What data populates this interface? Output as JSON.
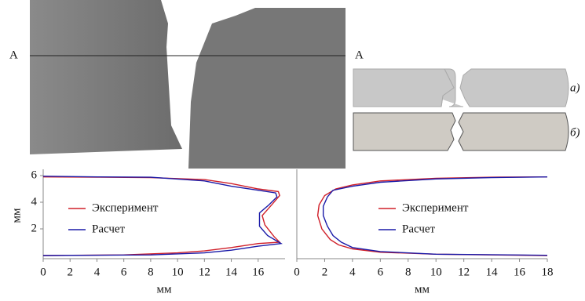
{
  "figure": {
    "section_labels": [
      "A",
      "A"
    ],
    "variant_labels": [
      "а)",
      "б)"
    ]
  },
  "chart_data": [
    {
      "type": "line",
      "xlabel": "мм",
      "ylabel": "мм",
      "xlim": [
        0,
        18
      ],
      "ylim": [
        0,
        6
      ],
      "xticks": [
        0,
        2,
        4,
        6,
        8,
        10,
        12,
        14,
        16
      ],
      "yticks": [
        2,
        4,
        6
      ],
      "legend": "left",
      "series": [
        {
          "name": "Эксперимент",
          "color": "#d0202a",
          "x": [
            0,
            4,
            8,
            12,
            14,
            16,
            17.5,
            17.6,
            17,
            16.3,
            16.5,
            17.2,
            17.6,
            16,
            14,
            12,
            10,
            6,
            0
          ],
          "values": [
            5.9,
            5.88,
            5.85,
            5.7,
            5.4,
            5.0,
            4.8,
            4.5,
            3.8,
            3.0,
            2.3,
            1.4,
            1.0,
            0.9,
            0.6,
            0.35,
            0.2,
            0.05,
            0.0
          ]
        },
        {
          "name": "Расчет",
          "color": "#1a1aa8",
          "x": [
            0,
            4,
            8,
            12,
            14,
            16,
            17.3,
            17.4,
            16.8,
            16.1,
            16.1,
            16.7,
            17.7,
            16,
            14,
            12,
            8,
            0
          ],
          "values": [
            5.95,
            5.9,
            5.88,
            5.6,
            5.2,
            4.9,
            4.7,
            4.4,
            3.8,
            3.2,
            2.2,
            1.5,
            0.9,
            0.7,
            0.4,
            0.2,
            0.05,
            0.0
          ]
        }
      ]
    },
    {
      "type": "line",
      "xlabel": "мм",
      "xlim": [
        0,
        18
      ],
      "ylim": [
        0,
        6
      ],
      "xticks": [
        0,
        2,
        4,
        6,
        8,
        10,
        12,
        14,
        16,
        18
      ],
      "legend": "right",
      "series": [
        {
          "name": "Эксперимент",
          "color": "#d0202a",
          "x": [
            18,
            14,
            10,
            6,
            4,
            2.8,
            2.0,
            1.6,
            1.5,
            1.8,
            2.4,
            3,
            4,
            6,
            10,
            18
          ],
          "values": [
            5.9,
            5.88,
            5.8,
            5.6,
            5.3,
            5.0,
            4.5,
            3.8,
            3.0,
            2.0,
            1.2,
            0.8,
            0.5,
            0.25,
            0.1,
            0.0
          ]
        },
        {
          "name": "Расчет",
          "color": "#1a1aa8",
          "x": [
            18,
            14,
            10,
            6,
            4,
            2.6,
            2.2,
            1.9,
            1.9,
            2.2,
            2.6,
            3.2,
            4,
            6,
            10,
            18
          ],
          "values": [
            5.9,
            5.85,
            5.75,
            5.5,
            5.2,
            4.9,
            4.4,
            3.7,
            3.0,
            2.2,
            1.5,
            1.0,
            0.6,
            0.3,
            0.1,
            0.02
          ]
        }
      ]
    }
  ]
}
